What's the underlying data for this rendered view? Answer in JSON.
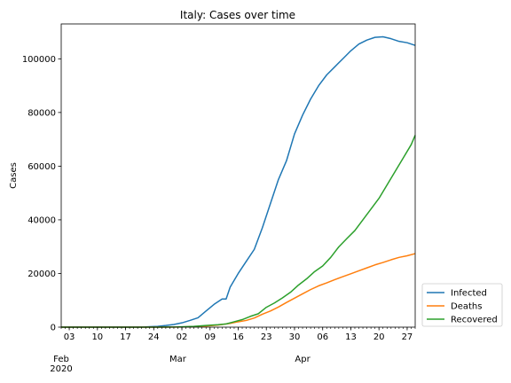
{
  "chart_data": {
    "type": "line",
    "title": "Italy: Cases over time",
    "xlabel": "",
    "ylabel": "Cases",
    "xlim": [
      "2020-02-01",
      "2020-04-29"
    ],
    "ylim": [
      0,
      113000
    ],
    "grid": false,
    "legend_position": "outside-lower-right",
    "yticks": [
      0,
      20000,
      40000,
      60000,
      80000,
      100000
    ],
    "ytick_labels": [
      "0",
      "20000",
      "40000",
      "60000",
      "80000",
      "100000"
    ],
    "xticks": [
      {
        "date": "2020-02-03",
        "label": "03"
      },
      {
        "date": "2020-02-10",
        "label": "10"
      },
      {
        "date": "2020-02-17",
        "label": "17"
      },
      {
        "date": "2020-02-24",
        "label": "24"
      },
      {
        "date": "2020-03-02",
        "label": "02"
      },
      {
        "date": "2020-03-09",
        "label": "09"
      },
      {
        "date": "2020-03-16",
        "label": "16"
      },
      {
        "date": "2020-03-23",
        "label": "23"
      },
      {
        "date": "2020-03-30",
        "label": "30"
      },
      {
        "date": "2020-04-06",
        "label": "06"
      },
      {
        "date": "2020-04-13",
        "label": "13"
      },
      {
        "date": "2020-04-20",
        "label": "20"
      },
      {
        "date": "2020-04-27",
        "label": "27"
      }
    ],
    "month_labels": [
      {
        "date": "2020-02-01",
        "label": "Feb"
      },
      {
        "date": "2020-03-01",
        "label": "Mar"
      },
      {
        "date": "2020-04-01",
        "label": "Apr"
      }
    ],
    "year_label": {
      "date": "2020-02-01",
      "label": "2020"
    },
    "series": [
      {
        "name": "Infected",
        "color": "#1f77b4",
        "points": [
          [
            "2020-02-01",
            0
          ],
          [
            "2020-02-21",
            20
          ],
          [
            "2020-02-23",
            150
          ],
          [
            "2020-02-25",
            300
          ],
          [
            "2020-02-27",
            600
          ],
          [
            "2020-02-29",
            1000
          ],
          [
            "2020-03-02",
            1600
          ],
          [
            "2020-03-04",
            2500
          ],
          [
            "2020-03-06",
            3500
          ],
          [
            "2020-03-08",
            6000
          ],
          [
            "2020-03-10",
            8500
          ],
          [
            "2020-03-12",
            10500
          ],
          [
            "2020-03-13",
            10500
          ],
          [
            "2020-03-14",
            14900
          ],
          [
            "2020-03-16",
            20000
          ],
          [
            "2020-03-18",
            24500
          ],
          [
            "2020-03-20",
            29000
          ],
          [
            "2020-03-22",
            37000
          ],
          [
            "2020-03-24",
            46000
          ],
          [
            "2020-03-26",
            55000
          ],
          [
            "2020-03-28",
            62000
          ],
          [
            "2020-03-30",
            72000
          ],
          [
            "2020-04-01",
            79000
          ],
          [
            "2020-04-03",
            85000
          ],
          [
            "2020-04-05",
            90000
          ],
          [
            "2020-04-07",
            94000
          ],
          [
            "2020-04-09",
            97000
          ],
          [
            "2020-04-11",
            100000
          ],
          [
            "2020-04-13",
            103000
          ],
          [
            "2020-04-15",
            105500
          ],
          [
            "2020-04-17",
            107000
          ],
          [
            "2020-04-19",
            108000
          ],
          [
            "2020-04-21",
            108200
          ],
          [
            "2020-04-23",
            107500
          ],
          [
            "2020-04-25",
            106500
          ],
          [
            "2020-04-27",
            106000
          ],
          [
            "2020-04-29",
            105000
          ]
        ]
      },
      {
        "name": "Deaths",
        "color": "#ff7f0e",
        "points": [
          [
            "2020-02-01",
            0
          ],
          [
            "2020-02-25",
            10
          ],
          [
            "2020-03-01",
            50
          ],
          [
            "2020-03-05",
            150
          ],
          [
            "2020-03-08",
            400
          ],
          [
            "2020-03-11",
            800
          ],
          [
            "2020-03-14",
            1400
          ],
          [
            "2020-03-16",
            2000
          ],
          [
            "2020-03-18",
            2500
          ],
          [
            "2020-03-20",
            3400
          ],
          [
            "2020-03-22",
            4800
          ],
          [
            "2020-03-24",
            6000
          ],
          [
            "2020-03-26",
            7500
          ],
          [
            "2020-03-28",
            9200
          ],
          [
            "2020-03-30",
            10800
          ],
          [
            "2020-04-01",
            12400
          ],
          [
            "2020-04-03",
            14000
          ],
          [
            "2020-04-05",
            15400
          ],
          [
            "2020-04-07",
            16500
          ],
          [
            "2020-04-09",
            17700
          ],
          [
            "2020-04-11",
            18800
          ],
          [
            "2020-04-13",
            19900
          ],
          [
            "2020-04-15",
            21000
          ],
          [
            "2020-04-17",
            22100
          ],
          [
            "2020-04-19",
            23200
          ],
          [
            "2020-04-21",
            24100
          ],
          [
            "2020-04-23",
            25100
          ],
          [
            "2020-04-25",
            26000
          ],
          [
            "2020-04-27",
            26600
          ],
          [
            "2020-04-29",
            27400
          ]
        ]
      },
      {
        "name": "Recovered",
        "color": "#2ca02c",
        "points": [
          [
            "2020-02-01",
            0
          ],
          [
            "2020-02-25",
            10
          ],
          [
            "2020-03-01",
            80
          ],
          [
            "2020-03-05",
            300
          ],
          [
            "2020-03-08",
            600
          ],
          [
            "2020-03-11",
            900
          ],
          [
            "2020-03-13",
            1200
          ],
          [
            "2020-03-15",
            2000
          ],
          [
            "2020-03-17",
            2800
          ],
          [
            "2020-03-19",
            4000
          ],
          [
            "2020-03-21",
            5000
          ],
          [
            "2020-03-23",
            7400
          ],
          [
            "2020-03-25",
            9000
          ],
          [
            "2020-03-27",
            10900
          ],
          [
            "2020-03-29",
            13000
          ],
          [
            "2020-03-31",
            15700
          ],
          [
            "2020-04-02",
            18000
          ],
          [
            "2020-04-04",
            20700
          ],
          [
            "2020-04-06",
            22800
          ],
          [
            "2020-04-08",
            26000
          ],
          [
            "2020-04-10",
            29900
          ],
          [
            "2020-04-12",
            33000
          ],
          [
            "2020-04-14",
            36000
          ],
          [
            "2020-04-16",
            40000
          ],
          [
            "2020-04-18",
            44000
          ],
          [
            "2020-04-20",
            48000
          ],
          [
            "2020-04-22",
            53000
          ],
          [
            "2020-04-24",
            58000
          ],
          [
            "2020-04-26",
            63000
          ],
          [
            "2020-04-28",
            68000
          ],
          [
            "2020-04-29",
            71500
          ]
        ]
      }
    ]
  }
}
